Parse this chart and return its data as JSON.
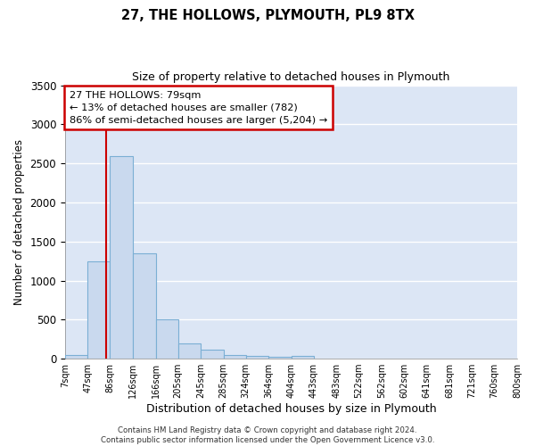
{
  "title": "27, THE HOLLOWS, PLYMOUTH, PL9 8TX",
  "subtitle": "Size of property relative to detached houses in Plymouth",
  "xlabel": "Distribution of detached houses by size in Plymouth",
  "ylabel": "Number of detached properties",
  "bar_color": "#c9d9ee",
  "bar_edge_color": "#7bafd4",
  "bg_color": "#dce6f5",
  "grid_color": "#ffffff",
  "vline_x": 79,
  "vline_color": "#cc0000",
  "bin_edges": [
    7,
    47,
    86,
    126,
    166,
    205,
    245,
    285,
    324,
    364,
    404,
    443,
    483,
    522,
    562,
    602,
    641,
    681,
    721,
    760,
    800
  ],
  "bin_labels": [
    "7sqm",
    "47sqm",
    "86sqm",
    "126sqm",
    "166sqm",
    "205sqm",
    "245sqm",
    "285sqm",
    "324sqm",
    "364sqm",
    "404sqm",
    "443sqm",
    "483sqm",
    "522sqm",
    "562sqm",
    "602sqm",
    "641sqm",
    "681sqm",
    "721sqm",
    "760sqm",
    "800sqm"
  ],
  "bar_heights": [
    50,
    1240,
    2590,
    1350,
    500,
    195,
    110,
    50,
    30,
    20,
    30,
    0,
    0,
    0,
    0,
    0,
    0,
    0,
    0,
    0
  ],
  "ylim": [
    0,
    3500
  ],
  "yticks": [
    0,
    500,
    1000,
    1500,
    2000,
    2500,
    3000,
    3500
  ],
  "annotation_title": "27 THE HOLLOWS: 79sqm",
  "annotation_line1": "← 13% of detached houses are smaller (782)",
  "annotation_line2": "86% of semi-detached houses are larger (5,204) →",
  "annotation_box_color": "#ffffff",
  "annotation_box_edge": "#cc0000",
  "footer_line1": "Contains HM Land Registry data © Crown copyright and database right 2024.",
  "footer_line2": "Contains public sector information licensed under the Open Government Licence v3.0."
}
